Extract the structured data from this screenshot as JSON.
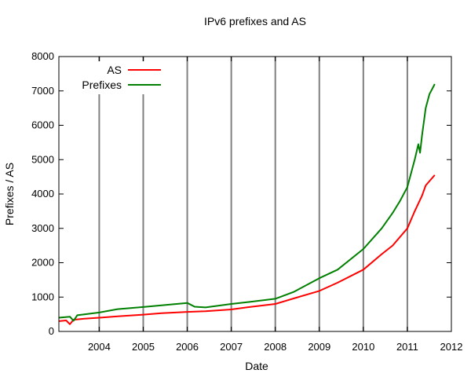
{
  "chart_data": {
    "type": "line",
    "title": "IPv6 prefixes and AS",
    "xlabel": "Date",
    "ylabel": "Prefixes / AS",
    "xlim": [
      "2003-02-01",
      "2012-01-01"
    ],
    "ylim": [
      0,
      8000
    ],
    "x_ticks": [
      "2004",
      "2005",
      "2006",
      "2007",
      "2008",
      "2009",
      "2010",
      "2011",
      "2012"
    ],
    "y_ticks": [
      0,
      1000,
      2000,
      3000,
      4000,
      5000,
      6000,
      7000,
      8000
    ],
    "grid": true,
    "grid_lines_x": [
      "2004",
      "2005",
      "2006",
      "2007",
      "2008",
      "2009",
      "2010",
      "2011"
    ],
    "legend_position": "top-left",
    "series": [
      {
        "name": "AS",
        "color": "#ff0000",
        "points": [
          [
            "2003-02-01",
            300
          ],
          [
            "2003-04-01",
            320
          ],
          [
            "2003-05-01",
            210
          ],
          [
            "2003-06-01",
            340
          ],
          [
            "2003-09-01",
            370
          ],
          [
            "2004-01-01",
            400
          ],
          [
            "2004-06-01",
            440
          ],
          [
            "2005-01-01",
            490
          ],
          [
            "2005-06-01",
            530
          ],
          [
            "2006-01-01",
            570
          ],
          [
            "2006-06-01",
            590
          ],
          [
            "2007-01-01",
            640
          ],
          [
            "2007-06-01",
            710
          ],
          [
            "2008-01-01",
            800
          ],
          [
            "2008-06-01",
            960
          ],
          [
            "2009-01-01",
            1180
          ],
          [
            "2009-06-01",
            1420
          ],
          [
            "2010-01-01",
            1800
          ],
          [
            "2010-06-01",
            2250
          ],
          [
            "2010-09-01",
            2500
          ],
          [
            "2011-01-01",
            3000
          ],
          [
            "2011-03-01",
            3500
          ],
          [
            "2011-05-01",
            3950
          ],
          [
            "2011-06-01",
            4250
          ],
          [
            "2011-08-15",
            4550
          ]
        ]
      },
      {
        "name": "Prefixes",
        "color": "#008000",
        "points": [
          [
            "2003-02-01",
            400
          ],
          [
            "2003-05-01",
            430
          ],
          [
            "2003-06-01",
            310
          ],
          [
            "2003-07-01",
            470
          ],
          [
            "2004-01-01",
            550
          ],
          [
            "2004-06-01",
            650
          ],
          [
            "2005-01-01",
            710
          ],
          [
            "2005-06-01",
            760
          ],
          [
            "2006-01-01",
            830
          ],
          [
            "2006-03-01",
            720
          ],
          [
            "2006-06-01",
            700
          ],
          [
            "2007-01-01",
            800
          ],
          [
            "2007-06-01",
            860
          ],
          [
            "2008-01-01",
            950
          ],
          [
            "2008-06-01",
            1150
          ],
          [
            "2009-01-01",
            1550
          ],
          [
            "2009-06-01",
            1800
          ],
          [
            "2010-01-01",
            2400
          ],
          [
            "2010-06-01",
            3000
          ],
          [
            "2010-09-01",
            3450
          ],
          [
            "2010-11-01",
            3800
          ],
          [
            "2011-01-01",
            4200
          ],
          [
            "2011-03-01",
            5000
          ],
          [
            "2011-04-01",
            5450
          ],
          [
            "2011-04-15",
            5200
          ],
          [
            "2011-05-01",
            5700
          ],
          [
            "2011-06-01",
            6500
          ],
          [
            "2011-07-01",
            6900
          ],
          [
            "2011-08-15",
            7200
          ]
        ]
      }
    ]
  }
}
